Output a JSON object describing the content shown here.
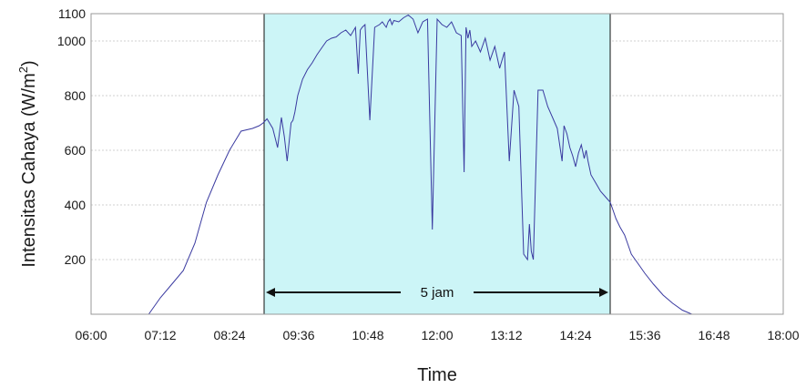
{
  "chart_data": {
    "type": "line",
    "xlabel": "Time",
    "ylabel": "Intensitas Cahaya (W/m",
    "ylabel_superscript": "2",
    "ylabel_suffix": ")",
    "x_ticks": [
      "06:00",
      "07:12",
      "08:24",
      "09:36",
      "10:48",
      "12:00",
      "13:12",
      "14:24",
      "15:36",
      "16:48",
      "18:00"
    ],
    "xlim": [
      "06:00",
      "18:00"
    ],
    "y_ticks": [
      200,
      400,
      600,
      800,
      1000,
      1100
    ],
    "ylim": [
      0,
      1100
    ],
    "grid": "horizontal",
    "line_color": "#3a3aa0",
    "shaded_region": {
      "start": "09:00",
      "end": "15:00",
      "color": "#ccf5f7"
    },
    "annotation": {
      "label": "5 jam",
      "start": "09:00",
      "end": "15:00",
      "y": 80
    },
    "series": [
      {
        "x": [
          "07:00",
          "07:12",
          "07:24",
          "07:36",
          "07:48",
          "08:00",
          "08:12",
          "08:24",
          "08:36",
          "08:48",
          "08:55",
          "08:59",
          "09:03",
          "09:09",
          "09:14",
          "09:18",
          "09:21",
          "09:24",
          "09:28",
          "09:30",
          "09:32",
          "09:35",
          "09:40",
          "09:45",
          "09:50",
          "09:55",
          "10:00",
          "10:05",
          "10:10",
          "10:15",
          "10:20",
          "10:25",
          "10:30",
          "10:35",
          "10:38",
          "10:40",
          "10:42",
          "10:45",
          "10:50",
          "10:55",
          "11:00",
          "11:03",
          "11:05",
          "11:07",
          "11:09",
          "11:11",
          "11:13",
          "11:15",
          "11:20",
          "11:25",
          "11:30",
          "11:35",
          "11:40",
          "11:45",
          "11:50",
          "11:55",
          "12:00",
          "12:05",
          "12:10",
          "12:15",
          "12:20",
          "12:25",
          "12:28",
          "12:30",
          "12:32",
          "12:34",
          "12:36",
          "12:40",
          "12:45",
          "12:50",
          "12:55",
          "13:00",
          "13:05",
          "13:10",
          "13:15",
          "13:20",
          "13:25",
          "13:30",
          "13:34",
          "13:36",
          "13:38",
          "13:40",
          "13:45",
          "13:50",
          "13:55",
          "14:00",
          "14:05",
          "14:10",
          "14:12",
          "14:15",
          "14:18",
          "14:21",
          "14:24",
          "14:27",
          "14:30",
          "14:33",
          "14:35",
          "14:37",
          "14:40",
          "14:45",
          "14:50",
          "14:55",
          "15:00",
          "15:03",
          "15:06",
          "15:10",
          "15:15",
          "15:18",
          "15:22",
          "15:26",
          "15:30",
          "15:36",
          "15:45",
          "15:55",
          "16:05",
          "16:15",
          "16:25",
          "16:35",
          "16:45",
          "16:55",
          "17:05",
          "17:15",
          "17:20"
        ],
        "y": [
          0,
          60,
          110,
          160,
          260,
          410,
          510,
          600,
          670,
          680,
          690,
          700,
          715,
          680,
          610,
          720,
          650,
          560,
          700,
          710,
          740,
          800,
          860,
          895,
          920,
          950,
          975,
          1000,
          1010,
          1015,
          1030,
          1040,
          1020,
          1050,
          880,
          1040,
          1050,
          1060,
          710,
          1050,
          1060,
          1070,
          1060,
          1050,
          1070,
          1080,
          1060,
          1075,
          1070,
          1085,
          1095,
          1080,
          1030,
          1070,
          1080,
          310,
          1080,
          1060,
          1050,
          1070,
          1030,
          1020,
          520,
          1050,
          1010,
          1040,
          980,
          1000,
          960,
          1010,
          930,
          980,
          900,
          960,
          560,
          820,
          760,
          220,
          200,
          330,
          230,
          200,
          820,
          820,
          760,
          720,
          680,
          560,
          690,
          660,
          610,
          580,
          540,
          590,
          620,
          570,
          600,
          560,
          510,
          480,
          450,
          430,
          410,
          380,
          350,
          320,
          290,
          260,
          220,
          200,
          180,
          150,
          110,
          70,
          40,
          15,
          0,
          0,
          0,
          0,
          0,
          0,
          0
        ]
      }
    ]
  }
}
